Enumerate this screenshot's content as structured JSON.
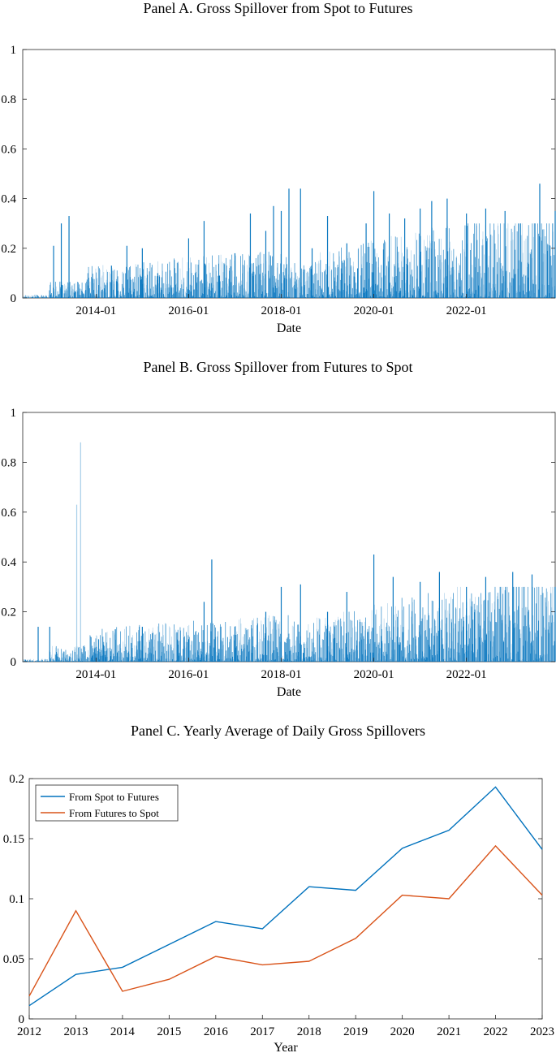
{
  "colors": {
    "spot_to_futures": "#0072BD",
    "futures_to_spot": "#D95319",
    "axis": "#262626"
  },
  "chart_data": [
    {
      "type": "bar",
      "title": "Panel A. Gross Spillover from Spot to Futures",
      "xlabel": "Date",
      "ylabel": "",
      "ylim": [
        0,
        1
      ],
      "yticks": [
        "0",
        "0.2",
        "0.4",
        "0.6",
        "0.8",
        "1"
      ],
      "xticks": [
        "2014-01",
        "2016-01",
        "2018-01",
        "2020-01",
        "2022-01"
      ],
      "xrange": [
        "2012-06",
        "2023-12"
      ],
      "grid": false,
      "series": [
        {
          "values": [
            {
              "x": "2013-02",
              "y": 0.21
            },
            {
              "x": "2013-04",
              "y": 0.3
            },
            {
              "x": "2013-06",
              "y": 0.33
            },
            {
              "x": "2014-05",
              "y": 0.13
            },
            {
              "x": "2014-09",
              "y": 0.21
            },
            {
              "x": "2015-01",
              "y": 0.2
            },
            {
              "x": "2015-05",
              "y": 0.1
            },
            {
              "x": "2016-01",
              "y": 0.24
            },
            {
              "x": "2016-05",
              "y": 0.31
            },
            {
              "x": "2016-09",
              "y": 0.09
            },
            {
              "x": "2017-01",
              "y": 0.18
            },
            {
              "x": "2017-05",
              "y": 0.34
            },
            {
              "x": "2017-09",
              "y": 0.27
            },
            {
              "x": "2017-11",
              "y": 0.37
            },
            {
              "x": "2018-01",
              "y": 0.35
            },
            {
              "x": "2018-03",
              "y": 0.44
            },
            {
              "x": "2018-06",
              "y": 0.44
            },
            {
              "x": "2018-09",
              "y": 0.2
            },
            {
              "x": "2019-01",
              "y": 0.33
            },
            {
              "x": "2019-06",
              "y": 0.22
            },
            {
              "x": "2019-11",
              "y": 0.3
            },
            {
              "x": "2020-01",
              "y": 0.43
            },
            {
              "x": "2020-05",
              "y": 0.34
            },
            {
              "x": "2020-09",
              "y": 0.32
            },
            {
              "x": "2021-01",
              "y": 0.36
            },
            {
              "x": "2021-04",
              "y": 0.39
            },
            {
              "x": "2021-08",
              "y": 0.4
            },
            {
              "x": "2022-01",
              "y": 0.34
            },
            {
              "x": "2022-06",
              "y": 0.36
            },
            {
              "x": "2022-11",
              "y": 0.35
            },
            {
              "x": "2023-03",
              "y": 0.3
            },
            {
              "x": "2023-08",
              "y": 0.46
            },
            {
              "x": "2023-12",
              "y": 0.35
            }
          ]
        }
      ]
    },
    {
      "type": "bar",
      "title": "Panel B. Gross Spillover from Futures to Spot",
      "xlabel": "Date",
      "ylabel": "",
      "ylim": [
        0,
        1
      ],
      "yticks": [
        "0",
        "0.2",
        "0.4",
        "0.6",
        "0.8",
        "1"
      ],
      "xticks": [
        "2014-01",
        "2016-01",
        "2018-01",
        "2020-01",
        "2022-01"
      ],
      "xrange": [
        "2012-06",
        "2023-12"
      ],
      "grid": false,
      "series": [
        {
          "values": [
            {
              "x": "2012-10",
              "y": 0.14
            },
            {
              "x": "2013-01",
              "y": 0.14
            },
            {
              "x": "2013-08",
              "y": 0.63
            },
            {
              "x": "2013-09",
              "y": 0.88
            },
            {
              "x": "2014-06",
              "y": 0.13
            },
            {
              "x": "2015-01",
              "y": 0.14
            },
            {
              "x": "2016-01",
              "y": 0.09
            },
            {
              "x": "2016-05",
              "y": 0.24
            },
            {
              "x": "2016-07",
              "y": 0.41
            },
            {
              "x": "2017-01",
              "y": 0.14
            },
            {
              "x": "2017-09",
              "y": 0.2
            },
            {
              "x": "2018-01",
              "y": 0.3
            },
            {
              "x": "2018-06",
              "y": 0.31
            },
            {
              "x": "2019-01",
              "y": 0.2
            },
            {
              "x": "2019-06",
              "y": 0.28
            },
            {
              "x": "2020-01",
              "y": 0.43
            },
            {
              "x": "2020-06",
              "y": 0.34
            },
            {
              "x": "2021-01",
              "y": 0.32
            },
            {
              "x": "2021-06",
              "y": 0.36
            },
            {
              "x": "2022-01",
              "y": 0.3
            },
            {
              "x": "2022-06",
              "y": 0.34
            },
            {
              "x": "2023-01",
              "y": 0.36
            },
            {
              "x": "2023-06",
              "y": 0.35
            },
            {
              "x": "2023-12",
              "y": 0.3
            }
          ]
        }
      ]
    },
    {
      "type": "line",
      "title": "Panel C. Yearly Average of Daily Gross Spillovers",
      "xlabel": "Year",
      "ylabel": "",
      "ylim": [
        0,
        0.2
      ],
      "yticks": [
        "0",
        "0.05",
        "0.1",
        "0.15",
        "0.2"
      ],
      "x": [
        "2012",
        "2013",
        "2014",
        "2015",
        "2016",
        "2017",
        "2018",
        "2019",
        "2020",
        "2021",
        "2022",
        "2023"
      ],
      "legend_position": "top-left",
      "grid": false,
      "series": [
        {
          "name": "From Spot to Futures",
          "values": [
            0.011,
            0.037,
            0.043,
            0.062,
            0.081,
            0.075,
            0.11,
            0.107,
            0.142,
            0.157,
            0.193,
            0.141
          ]
        },
        {
          "name": "From Futures to Spot",
          "values": [
            0.019,
            0.09,
            0.023,
            0.033,
            0.052,
            0.045,
            0.048,
            0.067,
            0.103,
            0.1,
            0.144,
            0.103
          ]
        }
      ]
    }
  ]
}
